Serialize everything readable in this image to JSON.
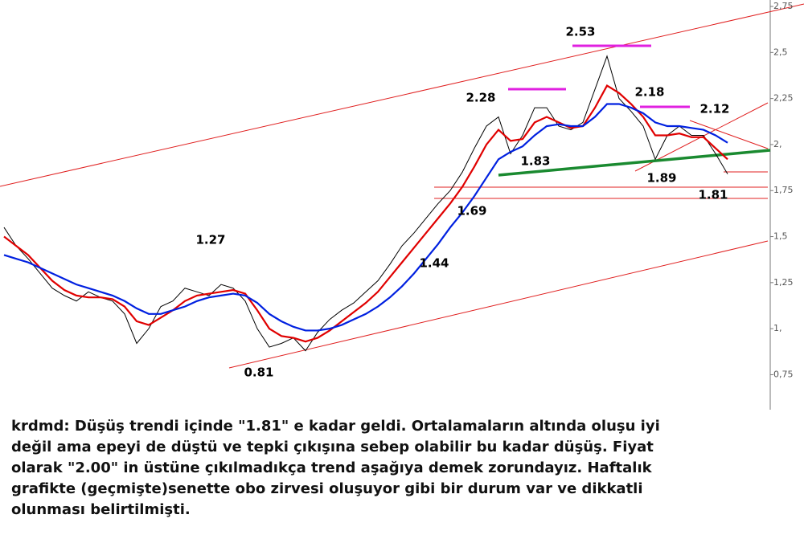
{
  "chart_data": {
    "type": "line",
    "ylim": [
      0.56,
      2.785
    ],
    "yticks": [
      {
        "value": 0.75,
        "label": "0,75"
      },
      {
        "value": 1,
        "label": "1,"
      },
      {
        "value": 1.25,
        "label": "1,25"
      },
      {
        "value": 1.5,
        "label": "1,5"
      },
      {
        "value": 1.75,
        "label": "1,75"
      },
      {
        "value": 2,
        "label": "2,"
      },
      {
        "value": 2.25,
        "label": "2,25"
      },
      {
        "value": 2.5,
        "label": "2,5"
      },
      {
        "value": 2.75,
        "label": "2,75"
      }
    ],
    "categories": [
      null,
      null,
      null,
      null,
      null,
      null,
      null,
      null,
      null,
      null,
      null,
      null,
      null,
      null,
      null,
      null,
      null,
      null,
      null,
      null,
      null,
      null,
      null,
      null,
      null,
      null,
      null,
      null,
      null,
      null,
      null,
      null,
      null,
      null,
      null,
      null,
      null,
      null,
      null,
      null,
      null,
      null,
      null,
      null,
      null,
      null,
      null,
      null,
      null,
      null,
      null,
      null,
      null,
      null,
      null,
      null,
      null,
      null,
      null,
      null,
      null
    ],
    "series": [
      {
        "color": "#000000",
        "values": [
          1.55,
          1.45,
          1.38,
          1.3,
          1.22,
          1.18,
          1.15,
          1.2,
          1.17,
          1.15,
          1.08,
          0.92,
          1.0,
          1.12,
          1.15,
          1.22,
          1.2,
          1.18,
          1.24,
          1.22,
          1.15,
          1.0,
          0.9,
          0.92,
          0.95,
          0.88,
          0.98,
          1.05,
          1.1,
          1.14,
          1.2,
          1.26,
          1.35,
          1.45,
          1.52,
          1.6,
          1.68,
          1.75,
          1.85,
          1.98,
          2.1,
          2.15,
          1.95,
          2.05,
          2.2,
          2.2,
          2.1,
          2.08,
          2.12,
          2.3,
          2.48,
          2.25,
          2.18,
          2.1,
          1.92,
          2.05,
          2.1,
          2.05,
          2.05,
          1.95,
          1.84
        ]
      },
      {
        "color": "#e00000",
        "values": [
          1.5,
          1.45,
          1.4,
          1.33,
          1.26,
          1.21,
          1.18,
          1.17,
          1.17,
          1.16,
          1.12,
          1.04,
          1.02,
          1.06,
          1.1,
          1.15,
          1.18,
          1.19,
          1.2,
          1.21,
          1.19,
          1.1,
          1.0,
          0.96,
          0.95,
          0.93,
          0.95,
          0.99,
          1.04,
          1.09,
          1.14,
          1.2,
          1.28,
          1.36,
          1.44,
          1.52,
          1.6,
          1.68,
          1.77,
          1.88,
          2.0,
          2.08,
          2.02,
          2.03,
          2.12,
          2.15,
          2.12,
          2.09,
          2.1,
          2.2,
          2.32,
          2.28,
          2.22,
          2.15,
          2.05,
          2.05,
          2.06,
          2.04,
          2.04,
          1.98,
          1.92
        ]
      },
      {
        "color": "#0020e0",
        "values": [
          1.4,
          1.38,
          1.36,
          1.33,
          1.3,
          1.27,
          1.24,
          1.22,
          1.2,
          1.18,
          1.15,
          1.11,
          1.08,
          1.08,
          1.1,
          1.12,
          1.15,
          1.17,
          1.18,
          1.19,
          1.18,
          1.14,
          1.08,
          1.04,
          1.01,
          0.99,
          0.99,
          1.0,
          1.02,
          1.05,
          1.08,
          1.12,
          1.17,
          1.23,
          1.3,
          1.38,
          1.46,
          1.55,
          1.63,
          1.72,
          1.82,
          1.92,
          1.96,
          1.99,
          2.05,
          2.1,
          2.11,
          2.1,
          2.1,
          2.15,
          2.22,
          2.22,
          2.2,
          2.17,
          2.12,
          2.1,
          2.1,
          2.09,
          2.08,
          2.05,
          2.01
        ]
      }
    ],
    "annotations": [
      "2.53",
      "2.28",
      "2.18",
      "2.12",
      "1.83",
      "1.89",
      "1.81",
      "1.69",
      "1.44",
      "1.27",
      "0.81"
    ]
  },
  "caption": [
    "krdmd: Düşüş trendi içinde \"1.81\" e kadar geldi. Ortalamaların altında oluşu iyi",
    "değil ama epeyi de düştü ve tepki çıkışına sebep olabilir bu kadar düşüş. Fiyat",
    "olarak \"2.00\" in üstüne çıkılmadıkça trend aşağıya demek zorundayız. Haftalık",
    "grafikte (geçmişte)senette obo zirvesi oluşuyor gibi bir durum var ve dikkatli",
    "olunması belirtilmişti."
  ]
}
